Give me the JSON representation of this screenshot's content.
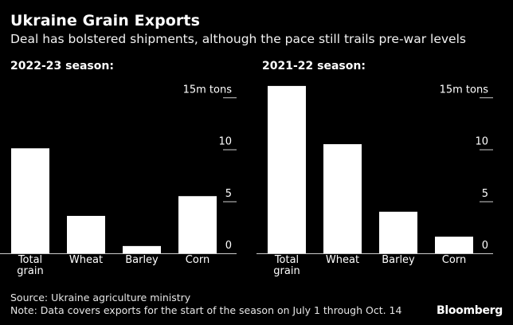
{
  "header": {
    "title": "Ukraine Grain Exports",
    "subtitle": "Deal has bolstered shipments, although the pace still trails pre-war levels"
  },
  "chart_data": [
    {
      "type": "bar",
      "title": "2022-23 season:",
      "categories": [
        "Total grain",
        "Wheat",
        "Barley",
        "Corn"
      ],
      "category_lines": [
        [
          "Total",
          "grain"
        ],
        [
          "Wheat"
        ],
        [
          "Barley"
        ],
        [
          "Corn"
        ]
      ],
      "values": [
        10.1,
        3.6,
        0.7,
        5.5
      ],
      "ylim": [
        0,
        15
      ],
      "yticks": [
        {
          "value": 0,
          "label": "0"
        },
        {
          "value": 5,
          "label": "5"
        },
        {
          "value": 10,
          "label": "10"
        },
        {
          "value": 15,
          "label": "15m tons"
        }
      ],
      "unit": "m tons",
      "grid": false
    },
    {
      "type": "bar",
      "title": "2021-22 season:",
      "categories": [
        "Total grain",
        "Wheat",
        "Barley",
        "Corn"
      ],
      "category_lines": [
        [
          "Total",
          "grain"
        ],
        [
          "Wheat"
        ],
        [
          "Barley"
        ],
        [
          "Corn"
        ]
      ],
      "values": [
        16.1,
        10.5,
        4.0,
        1.6
      ],
      "ylim": [
        0,
        15
      ],
      "yticks": [
        {
          "value": 0,
          "label": "0"
        },
        {
          "value": 5,
          "label": "5"
        },
        {
          "value": 10,
          "label": "10"
        },
        {
          "value": 15,
          "label": "15m tons"
        }
      ],
      "unit": "m tons",
      "grid": false
    }
  ],
  "footer": {
    "source": "Source: Ukraine agriculture ministry",
    "note": "Note: Data covers exports for the start of the season on July 1 through Oct. 14",
    "brand": "Bloomberg"
  },
  "colors": {
    "background": "#000000",
    "bar": "#ffffff",
    "text": "#ffffff",
    "tick_line": "#cccccc"
  }
}
